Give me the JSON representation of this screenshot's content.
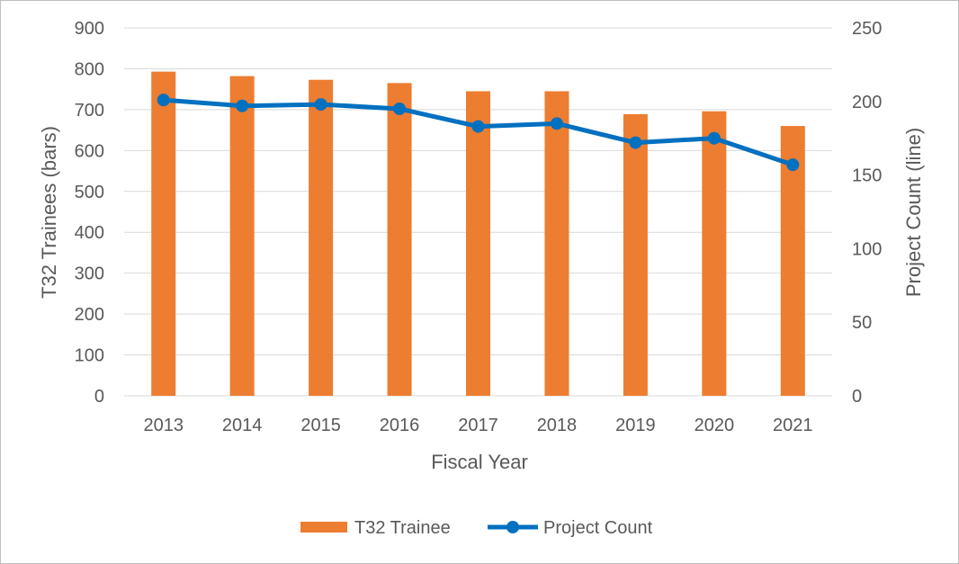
{
  "chart_data": {
    "type": "bar",
    "categories": [
      "2013",
      "2014",
      "2015",
      "2016",
      "2017",
      "2018",
      "2019",
      "2020",
      "2021"
    ],
    "series": [
      {
        "name": "T32 Trainee",
        "type": "bar",
        "axis": "left",
        "values": [
          793,
          782,
          773,
          765,
          745,
          745,
          689,
          696,
          660
        ]
      },
      {
        "name": "Project Count",
        "type": "line",
        "axis": "right",
        "values": [
          201,
          197,
          198,
          195,
          183,
          185,
          172,
          175,
          157
        ]
      }
    ],
    "title": "",
    "xlabel": "Fiscal Year",
    "ylabel": "T32 Trainees (bars)",
    "y2label": "Project Count (line)",
    "ylim": [
      0,
      900
    ],
    "y2lim": [
      0,
      250
    ],
    "yticks": [
      "0",
      "100",
      "200",
      "300",
      "400",
      "500",
      "600",
      "700",
      "800",
      "900"
    ],
    "y2ticks": [
      "0",
      "50",
      "100",
      "150",
      "200",
      "250"
    ],
    "grid": true,
    "legend_position": "bottom",
    "colors": {
      "bar": "#ED7D31",
      "line": "#0070C0",
      "grid": "#d9d9d9",
      "text": "#595959"
    }
  }
}
